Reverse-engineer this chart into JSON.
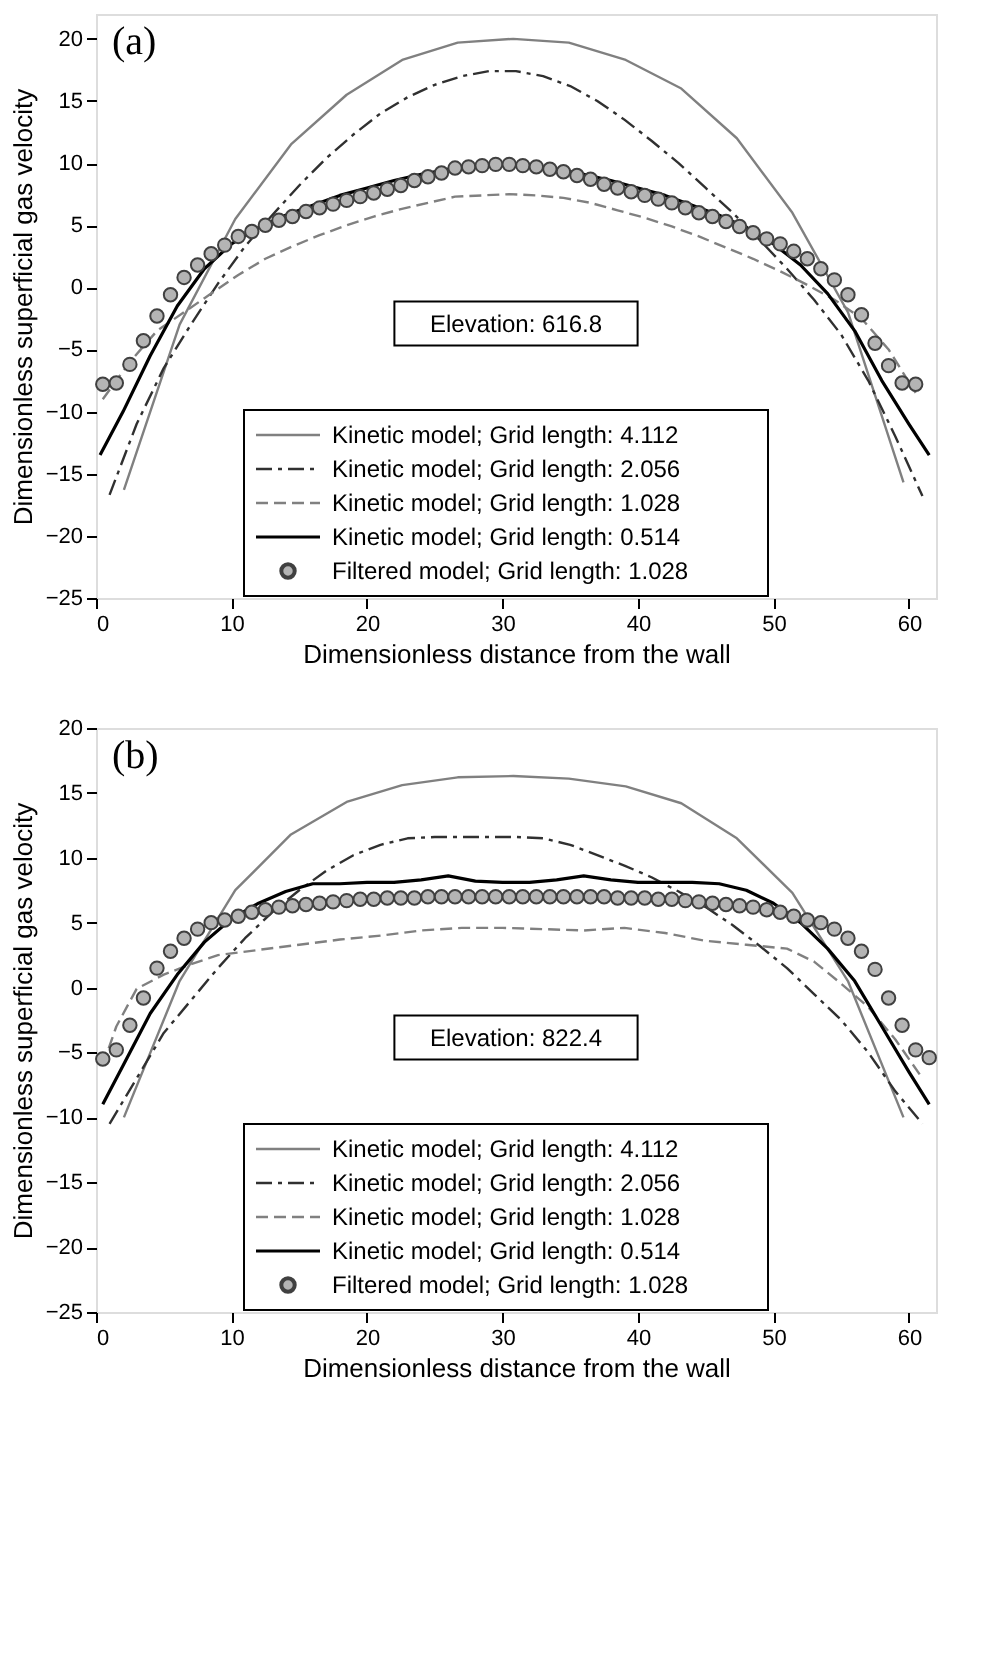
{
  "chart_data": [
    {
      "type": "line",
      "xlabel": "Dimensionless distance from the wall",
      "ylabel": "Dimensionless superficial gas velocity",
      "xlim": [
        0,
        62
      ],
      "ylim": [
        -25,
        22
      ],
      "xticks": [
        0,
        10,
        20,
        30,
        40,
        50,
        60
      ],
      "yticks": [
        -25,
        -20,
        -15,
        -10,
        -5,
        0,
        5,
        10,
        15,
        20
      ],
      "legend": "bottom",
      "annotations": [
        "(a)",
        "Elevation: 616.8"
      ],
      "series": [
        {
          "name": "Kinetic model; Grid length: 4.112",
          "color": "#808080",
          "line_style": "solid",
          "x": [
            2.06,
            6.17,
            10.28,
            14.39,
            18.5,
            22.6,
            26.7,
            30.8,
            34.9,
            39.1,
            43.2,
            47.3,
            51.4,
            55.5,
            59.6
          ],
          "values": [
            -16.3,
            -3.0,
            5.5,
            11.5,
            15.5,
            18.3,
            19.7,
            20.0,
            19.7,
            18.3,
            16.0,
            12.0,
            6.0,
            -2.0,
            -15.7
          ]
        },
        {
          "name": "Kinetic model; Grid length: 2.056",
          "color": "#303030",
          "line_style": "dashdot",
          "x": [
            1,
            3,
            5,
            7,
            9,
            11,
            13,
            15,
            17,
            19,
            21,
            23,
            25,
            27,
            29,
            31,
            33,
            35,
            37,
            39,
            41,
            43,
            45,
            47,
            49,
            51,
            53,
            55,
            57,
            59,
            61
          ],
          "values": [
            -16.7,
            -11,
            -6.5,
            -3,
            0.3,
            3.3,
            5.8,
            8.2,
            10.4,
            12.3,
            14.0,
            15.3,
            16.3,
            17.0,
            17.4,
            17.4,
            17.0,
            16.2,
            15.0,
            13.5,
            11.8,
            10.0,
            8.0,
            6.0,
            3.8,
            1.5,
            -1.0,
            -3.8,
            -7.5,
            -12,
            -16.8
          ]
        },
        {
          "name": "Kinetic model; Grid length: 1.028",
          "color": "#808080",
          "line_style": "dashed",
          "x": [
            0.5,
            2.5,
            4.5,
            6.5,
            8.5,
            10.5,
            12.5,
            14.5,
            16.5,
            18.5,
            20.5,
            22.5,
            24.5,
            26.5,
            28.5,
            30.5,
            32.5,
            34.5,
            36.5,
            38.5,
            40.5,
            42.5,
            44.5,
            46.5,
            48.5,
            50.5,
            52.5,
            54.5,
            56.5,
            58.5,
            60.5
          ],
          "values": [
            -9,
            -6,
            -3.5,
            -2.0,
            -0.5,
            1.0,
            2.3,
            3.3,
            4.2,
            5.0,
            5.7,
            6.3,
            6.8,
            7.3,
            7.4,
            7.5,
            7.4,
            7.2,
            6.8,
            6.2,
            5.6,
            4.9,
            4.1,
            3.2,
            2.3,
            1.3,
            0.2,
            -1.0,
            -2.5,
            -5,
            -8.5
          ]
        },
        {
          "name": "Kinetic model; Grid length: 0.514",
          "color": "#000000",
          "line_style": "solid",
          "x": [
            0.3,
            2,
            4,
            6,
            8,
            10,
            12,
            14,
            16,
            18,
            20,
            22,
            24,
            26,
            28,
            30,
            32,
            34,
            36,
            38,
            40,
            42,
            44,
            46,
            48,
            50,
            52,
            54,
            56,
            58,
            60,
            61.5
          ],
          "values": [
            -13.5,
            -10,
            -5.5,
            -1.5,
            1.5,
            3.5,
            4.8,
            5.8,
            6.6,
            7.4,
            8.0,
            8.6,
            9.1,
            9.5,
            9.8,
            9.9,
            9.8,
            9.5,
            9.1,
            8.6,
            8.0,
            7.4,
            6.6,
            5.8,
            4.8,
            3.5,
            1.8,
            -0.5,
            -3.5,
            -7.5,
            -11,
            -13.5
          ]
        },
        {
          "name": "Filtered model; Grid length: 1.028",
          "type": "scatter",
          "marker": "circle",
          "color": "#b4b4b4",
          "x": [
            0.5,
            1.5,
            2.5,
            3.5,
            4.5,
            5.5,
            6.5,
            7.5,
            8.5,
            9.5,
            10.5,
            11.5,
            12.5,
            13.5,
            14.5,
            15.5,
            16.5,
            17.5,
            18.5,
            19.5,
            20.5,
            21.5,
            22.5,
            23.5,
            24.5,
            25.5,
            26.5,
            27.5,
            28.5,
            29.5,
            30.5,
            31.5,
            32.5,
            33.5,
            34.5,
            35.5,
            36.5,
            37.5,
            38.5,
            39.5,
            40.5,
            41.5,
            42.5,
            43.5,
            44.5,
            45.5,
            46.5,
            47.5,
            48.5,
            49.5,
            50.5,
            51.5,
            52.5,
            53.5,
            54.5,
            55.5,
            56.5,
            57.5,
            58.5,
            59.5,
            60.5
          ],
          "values": [
            -7.8,
            -7.7,
            -6.2,
            -4.3,
            -2.3,
            -0.6,
            0.8,
            1.8,
            2.7,
            3.4,
            4.1,
            4.5,
            5.0,
            5.4,
            5.7,
            6.1,
            6.4,
            6.7,
            7.0,
            7.3,
            7.6,
            7.9,
            8.2,
            8.6,
            8.9,
            9.2,
            9.6,
            9.7,
            9.8,
            9.9,
            9.9,
            9.8,
            9.7,
            9.5,
            9.3,
            9.0,
            8.7,
            8.3,
            8.0,
            7.7,
            7.4,
            7.1,
            6.8,
            6.4,
            6.0,
            5.7,
            5.3,
            4.9,
            4.4,
            3.9,
            3.5,
            2.9,
            2.3,
            1.5,
            0.6,
            -0.6,
            -2.2,
            -4.5,
            -6.3,
            -7.7,
            -7.8
          ]
        }
      ]
    },
    {
      "type": "line",
      "xlabel": "Dimensionless distance from the wall",
      "ylabel": "Dimensionless superficial gas velocity",
      "xlim": [
        0,
        62
      ],
      "ylim": [
        -25,
        20
      ],
      "xticks": [
        0,
        10,
        20,
        30,
        40,
        50,
        60
      ],
      "yticks": [
        -25,
        -20,
        -15,
        -10,
        -5,
        0,
        5,
        10,
        15,
        20
      ],
      "legend": "bottom",
      "annotations": [
        "(b)",
        "Elevation: 822.4"
      ],
      "series": [
        {
          "name": "Kinetic model; Grid length: 4.112",
          "color": "#808080",
          "line_style": "solid",
          "x": [
            2.06,
            6.17,
            10.28,
            14.39,
            18.5,
            22.6,
            26.7,
            30.8,
            34.9,
            39.1,
            43.2,
            47.3,
            51.4,
            55.5,
            59.6
          ],
          "values": [
            -10,
            0.5,
            7.5,
            11.8,
            14.3,
            15.6,
            16.2,
            16.3,
            16.1,
            15.5,
            14.2,
            11.5,
            7.3,
            0.5,
            -10
          ]
        },
        {
          "name": "Kinetic model; Grid length: 2.056",
          "color": "#303030",
          "line_style": "dashdot",
          "x": [
            1,
            3,
            5,
            7,
            9,
            11,
            13,
            15,
            17,
            19,
            21,
            23,
            25,
            27,
            29,
            31,
            33,
            35,
            37,
            39,
            41,
            43,
            45,
            47,
            49,
            51,
            53,
            55,
            57,
            59,
            61
          ],
          "values": [
            -10.5,
            -7,
            -3.5,
            -1,
            1.5,
            3.8,
            5.8,
            7.5,
            9,
            10.2,
            11,
            11.5,
            11.6,
            11.6,
            11.6,
            11.6,
            11.5,
            11,
            10.2,
            9.4,
            8.5,
            7.4,
            6.2,
            4.8,
            3.2,
            1.5,
            -0.5,
            -2.5,
            -5,
            -8,
            -10.5
          ]
        },
        {
          "name": "Kinetic model; Grid length: 1.028",
          "color": "#808080",
          "line_style": "dashed",
          "x": [
            0.5,
            1.5,
            3,
            5,
            7,
            9,
            12,
            15,
            18,
            21,
            24,
            27,
            30,
            33,
            36,
            39,
            42,
            45,
            48,
            51,
            53,
            55,
            57,
            59,
            61
          ],
          "values": [
            -6,
            -3,
            -0.1,
            1.0,
            1.8,
            2.5,
            2.9,
            3.3,
            3.7,
            4.0,
            4.4,
            4.6,
            4.6,
            4.5,
            4.4,
            4.6,
            4.2,
            3.6,
            3.3,
            3.0,
            2.0,
            0.3,
            -1.5,
            -4,
            -7
          ]
        },
        {
          "name": "Kinetic model; Grid length: 0.514",
          "color": "#000000",
          "line_style": "solid",
          "x": [
            0.5,
            2,
            4,
            6,
            8,
            10,
            12,
            14,
            16,
            18,
            20,
            22,
            24,
            26,
            28,
            30,
            32,
            34,
            36,
            38,
            40,
            42,
            44,
            46,
            48,
            50,
            52,
            54,
            56,
            58,
            60,
            61.5
          ],
          "values": [
            -9,
            -6,
            -2,
            1,
            3.5,
            5.3,
            6.5,
            7.4,
            8.0,
            8.0,
            8.1,
            8.1,
            8.3,
            8.6,
            8.2,
            8.1,
            8.1,
            8.3,
            8.6,
            8.3,
            8.1,
            8.1,
            8.1,
            8.0,
            7.5,
            6.5,
            5.0,
            3.0,
            0.5,
            -3,
            -6.5,
            -9
          ]
        },
        {
          "name": "Filtered model; Grid length: 1.028",
          "type": "scatter",
          "marker": "circle",
          "color": "#b4b4b4",
          "x": [
            0.5,
            1.5,
            2.5,
            3.5,
            4.5,
            5.5,
            6.5,
            7.5,
            8.5,
            9.5,
            10.5,
            11.5,
            12.5,
            13.5,
            14.5,
            15.5,
            16.5,
            17.5,
            18.5,
            19.5,
            20.5,
            21.5,
            22.5,
            23.5,
            24.5,
            25.5,
            26.5,
            27.5,
            28.5,
            29.5,
            30.5,
            31.5,
            32.5,
            33.5,
            34.5,
            35.5,
            36.5,
            37.5,
            38.5,
            39.5,
            40.5,
            41.5,
            42.5,
            43.5,
            44.5,
            45.5,
            46.5,
            47.5,
            48.5,
            49.5,
            50.5,
            51.5,
            52.5,
            53.5,
            54.5,
            55.5,
            56.5,
            57.5,
            58.5,
            59.5,
            60.5,
            61.5
          ],
          "values": [
            -5.5,
            -4.8,
            -2.9,
            -0.8,
            1.5,
            2.8,
            3.8,
            4.5,
            5.0,
            5.2,
            5.5,
            5.8,
            6.0,
            6.2,
            6.3,
            6.4,
            6.5,
            6.6,
            6.7,
            6.8,
            6.8,
            6.9,
            6.9,
            6.9,
            7.0,
            7.0,
            7.0,
            7.0,
            7.0,
            7.0,
            7.0,
            7.0,
            7.0,
            7.0,
            7.0,
            7.0,
            7.0,
            7.0,
            6.9,
            6.9,
            6.9,
            6.8,
            6.8,
            6.7,
            6.6,
            6.5,
            6.4,
            6.3,
            6.2,
            6.0,
            5.8,
            5.5,
            5.2,
            5.0,
            4.5,
            3.8,
            2.8,
            1.4,
            -0.8,
            -2.9,
            -4.8,
            -5.4
          ]
        }
      ]
    }
  ]
}
